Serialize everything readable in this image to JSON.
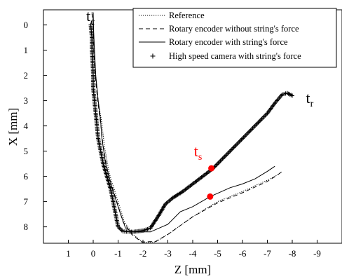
{
  "chart_data": {
    "type": "line",
    "xlabel": "Z [mm]",
    "ylabel": "X [mm]",
    "xlim": [
      2,
      -10
    ],
    "ylim": [
      -0.6,
      8.65
    ],
    "x_ticks": [
      1,
      0,
      -1,
      -2,
      -3,
      -4,
      -5,
      -6,
      -7,
      -8,
      -9
    ],
    "x_tick_labels": [
      "1",
      "0",
      "-1",
      "-2",
      "-3",
      "-4",
      "-5",
      "-6",
      "-7",
      "-8",
      "-9"
    ],
    "y_ticks": [
      0,
      1,
      2,
      3,
      4,
      5,
      6,
      7,
      8
    ],
    "y_tick_labels": [
      "0",
      "1",
      "2",
      "3",
      "4",
      "5",
      "6",
      "7",
      "8"
    ],
    "grid": false,
    "legend_position": "top-right",
    "series": [
      {
        "name": "Reference",
        "style": "dotted",
        "points": [
          [
            0.05,
            -0.5
          ],
          [
            0.0,
            0.0
          ],
          [
            -0.05,
            1.0
          ],
          [
            -0.1,
            2.0
          ],
          [
            -0.2,
            3.0
          ],
          [
            -0.35,
            3.9
          ],
          [
            -0.45,
            4.8
          ],
          [
            -0.65,
            5.9
          ],
          [
            -1.0,
            7.0
          ],
          [
            -1.25,
            7.8
          ],
          [
            -1.6,
            8.3
          ],
          [
            -2.0,
            8.62
          ],
          [
            -2.5,
            8.6
          ],
          [
            -3.0,
            8.3
          ],
          [
            -4.0,
            7.6
          ],
          [
            -5.0,
            7.0
          ],
          [
            -6.0,
            6.6
          ],
          [
            -7.0,
            6.15
          ],
          [
            -7.4,
            5.95
          ],
          [
            -7.6,
            5.8
          ]
        ]
      },
      {
        "name": "Rotary encoder without string's force",
        "style": "dashed",
        "points": [
          [
            0.05,
            -0.45
          ],
          [
            0.0,
            0.0
          ],
          [
            -0.02,
            1.0
          ],
          [
            -0.08,
            2.0
          ],
          [
            -0.18,
            3.0
          ],
          [
            -0.3,
            3.9
          ],
          [
            -0.4,
            4.8
          ],
          [
            -0.6,
            5.9
          ],
          [
            -0.95,
            7.0
          ],
          [
            -1.2,
            7.8
          ],
          [
            -1.55,
            8.3
          ],
          [
            -1.95,
            8.6
          ],
          [
            -2.5,
            8.58
          ],
          [
            -3.0,
            8.3
          ],
          [
            -4.0,
            7.6
          ],
          [
            -5.0,
            7.05
          ],
          [
            -6.0,
            6.65
          ],
          [
            -7.0,
            6.2
          ],
          [
            -7.4,
            5.95
          ],
          [
            -7.6,
            5.8
          ]
        ]
      },
      {
        "name": "Rotary encoder with string's force",
        "style": "solid",
        "points": [
          [
            0.0,
            -0.5
          ],
          [
            -0.02,
            0.3
          ],
          [
            -0.05,
            1.0
          ],
          [
            -0.1,
            2.0
          ],
          [
            -0.2,
            3.0
          ],
          [
            -0.3,
            3.8
          ],
          [
            -0.35,
            4.5
          ],
          [
            -0.5,
            5.5
          ],
          [
            -0.8,
            6.6
          ],
          [
            -1.1,
            7.5
          ],
          [
            -1.3,
            8.05
          ],
          [
            -1.6,
            8.2
          ],
          [
            -2.3,
            8.2
          ],
          [
            -3.0,
            7.9
          ],
          [
            -3.5,
            7.4
          ],
          [
            -4.0,
            7.2
          ],
          [
            -4.7,
            6.8
          ],
          [
            -5.5,
            6.45
          ],
          [
            -6.0,
            6.3
          ],
          [
            -6.5,
            6.1
          ],
          [
            -7.0,
            5.8
          ],
          [
            -7.3,
            5.6
          ]
        ]
      },
      {
        "name": "High speed camera with string's force",
        "style": "plus-markers",
        "points": [
          [
            0.1,
            0.0
          ],
          [
            0.05,
            0.5
          ],
          [
            0.05,
            1.0
          ],
          [
            0.02,
            1.5
          ],
          [
            0.0,
            2.0
          ],
          [
            0.0,
            2.5
          ],
          [
            -0.05,
            3.0
          ],
          [
            -0.1,
            3.5
          ],
          [
            -0.15,
            4.0
          ],
          [
            -0.2,
            4.5
          ],
          [
            -0.3,
            5.0
          ],
          [
            -0.4,
            5.5
          ],
          [
            -0.55,
            6.0
          ],
          [
            -0.7,
            6.5
          ],
          [
            -0.8,
            7.0
          ],
          [
            -0.9,
            7.5
          ],
          [
            -1.0,
            8.0
          ],
          [
            -1.2,
            8.18
          ],
          [
            -1.6,
            8.2
          ],
          [
            -2.0,
            8.15
          ],
          [
            -2.3,
            8.05
          ],
          [
            -2.6,
            7.6
          ],
          [
            -2.9,
            7.1
          ],
          [
            -3.2,
            6.85
          ],
          [
            -3.6,
            6.6
          ],
          [
            -4.0,
            6.3
          ],
          [
            -4.4,
            6.0
          ],
          [
            -4.8,
            5.7
          ],
          [
            -5.2,
            5.3
          ],
          [
            -5.6,
            4.9
          ],
          [
            -6.0,
            4.5
          ],
          [
            -6.5,
            4.0
          ],
          [
            -7.0,
            3.5
          ],
          [
            -7.3,
            3.1
          ],
          [
            -7.6,
            2.75
          ],
          [
            -7.8,
            2.7
          ],
          [
            -8.0,
            2.8
          ]
        ]
      }
    ],
    "markers": [
      {
        "x": -4.75,
        "y": 5.68,
        "color": "#ff0000"
      },
      {
        "x": -4.7,
        "y": 6.8,
        "color": "#ff0000"
      }
    ],
    "annotations": [
      {
        "base": "t",
        "sub": "c",
        "x": 0.28,
        "y": -0.15,
        "color": "#000000"
      },
      {
        "base": "t",
        "sub": "s",
        "x": -4.05,
        "y": 5.2,
        "color": "#ff0000"
      },
      {
        "base": "t",
        "sub": "r",
        "x": -8.55,
        "y": 3.1,
        "color": "#000000"
      }
    ]
  }
}
